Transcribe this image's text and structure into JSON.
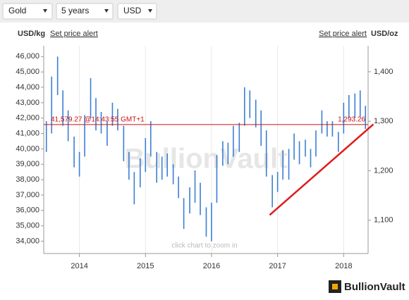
{
  "controls": {
    "metal": "Gold",
    "period": "5 years",
    "currency": "USD"
  },
  "header": {
    "left_unit": "USD/kg",
    "left_link": "Set price alert",
    "right_link": "Set price alert",
    "right_unit": "USD/oz"
  },
  "chart_data": {
    "type": "range",
    "color": "#3b7fd4",
    "watermark": "BullionVault",
    "hint": "click chart to zoom in",
    "x": [
      2013.5,
      2013.58,
      2013.67,
      2013.75,
      2013.83,
      2013.92,
      2014.0,
      2014.08,
      2014.17,
      2014.25,
      2014.33,
      2014.42,
      2014.5,
      2014.58,
      2014.67,
      2014.75,
      2014.83,
      2014.92,
      2015.0,
      2015.08,
      2015.17,
      2015.25,
      2015.33,
      2015.42,
      2015.5,
      2015.58,
      2015.67,
      2015.75,
      2015.83,
      2015.92,
      2016.0,
      2016.08,
      2016.17,
      2016.25,
      2016.33,
      2016.42,
      2016.5,
      2016.58,
      2016.67,
      2016.75,
      2016.83,
      2016.92,
      2017.0,
      2017.08,
      2017.17,
      2017.25,
      2017.33,
      2017.42,
      2017.5,
      2017.58,
      2017.67,
      2017.75,
      2017.83,
      2017.92,
      2018.0,
      2018.08,
      2018.17,
      2018.25,
      2018.33
    ],
    "low": [
      39800,
      41000,
      43500,
      41500,
      40500,
      38800,
      38200,
      39500,
      42000,
      41200,
      41000,
      40200,
      41500,
      41200,
      39200,
      38000,
      36400,
      37500,
      38500,
      39500,
      37800,
      38000,
      38200,
      37700,
      36800,
      34800,
      35800,
      36500,
      35700,
      34300,
      34000,
      36500,
      38900,
      39000,
      39500,
      39800,
      41500,
      42000,
      41400,
      40200,
      38200,
      36200,
      37200,
      38000,
      38000,
      39300,
      39000,
      39500,
      38800,
      39500,
      41000,
      40800,
      40800,
      39800,
      41000,
      42000,
      42000,
      42100,
      41300
    ],
    "high": [
      41800,
      44700,
      46000,
      43800,
      42500,
      40800,
      39800,
      42200,
      44600,
      43300,
      42400,
      41800,
      43000,
      42600,
      41500,
      39800,
      38500,
      39400,
      40700,
      41800,
      39800,
      39500,
      39700,
      39000,
      38200,
      36800,
      37500,
      38600,
      37800,
      36200,
      36500,
      39600,
      40500,
      40400,
      41500,
      41700,
      44000,
      43800,
      43200,
      42500,
      41200,
      38300,
      38500,
      39900,
      40000,
      41000,
      40500,
      40600,
      40000,
      41200,
      42500,
      41800,
      41800,
      41100,
      43000,
      43500,
      43600,
      43800,
      42800
    ],
    "xlim": [
      2013.46,
      2018.37
    ],
    "xticks": [
      2014,
      2015,
      2016,
      2017,
      2018
    ],
    "xgrid": true,
    "ylim": [
      33200,
      46700
    ],
    "yticks": [
      {
        "value": 34000,
        "label": "34,000"
      },
      {
        "value": 35000,
        "label": "35,000"
      },
      {
        "value": 36000,
        "label": "36,000"
      },
      {
        "value": 37000,
        "label": "37,000"
      },
      {
        "value": 38000,
        "label": "38,000"
      },
      {
        "value": 39000,
        "label": "39,000"
      },
      {
        "value": 40000,
        "label": "40,000"
      },
      {
        "value": 41000,
        "label": "41,000"
      },
      {
        "value": 42000,
        "label": "42,000"
      },
      {
        "value": 43000,
        "label": "43,000"
      },
      {
        "value": 44000,
        "label": "44,000"
      },
      {
        "value": 45000,
        "label": "45,000"
      },
      {
        "value": 46000,
        "label": "46,000"
      }
    ],
    "y2lim": [
      1032.6,
      1452.5
    ],
    "y2ticks": [
      {
        "value": 1100,
        "label": "1,100"
      },
      {
        "value": 1200,
        "label": "1,200"
      },
      {
        "value": 1300,
        "label": "1,300"
      },
      {
        "value": 1400,
        "label": "1,400"
      }
    ],
    "reference_line": {
      "value": 41579.27,
      "label": "41,579.27 @14:43:55 GMT+1",
      "color": "#cc1111",
      "y2": {
        "value": 1293.26,
        "label": "1,293.26"
      }
    },
    "trend_line": {
      "x": [
        2016.88,
        2018.45
      ],
      "values": [
        35700,
        41600
      ],
      "color": "#e01b1b"
    }
  },
  "footer": {
    "logo": "BullionVault"
  }
}
